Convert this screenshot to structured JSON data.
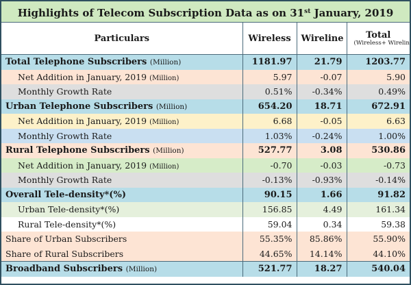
{
  "title": {
    "prefix": "Highlights of Telecom Subscription Data as on 31",
    "superscript": "st",
    "suffix": " January, 2019"
  },
  "header": {
    "particulars": "Particulars",
    "wireless": "Wireless",
    "wireline": "Wireline",
    "total": "Total",
    "total_sub": "(Wireless+ Wireline)"
  },
  "rows": [
    {
      "label": "Total Telephone Subscribers",
      "unit": "(Million)",
      "wireless": "1181.97",
      "wireline": "21.79",
      "total": "1203.77"
    },
    {
      "label": "Net Addition in January, 2019",
      "unit": "(Million)",
      "wireless": "5.97",
      "wireline": "-0.07",
      "total": "5.90"
    },
    {
      "label": "Monthly Growth Rate",
      "unit": "",
      "wireless": "0.51%",
      "wireline": "-0.34%",
      "total": "0.49%"
    },
    {
      "label": "Urban Telephone Subscribers",
      "unit": "(Million)",
      "wireless": "654.20",
      "wireline": "18.71",
      "total": "672.91"
    },
    {
      "label": "Net Addition in January, 2019",
      "unit": "(Million)",
      "wireless": "6.68",
      "wireline": "-0.05",
      "total": "6.63"
    },
    {
      "label": "Monthly Growth Rate",
      "unit": "",
      "wireless": "1.03%",
      "wireline": "-0.24%",
      "total": "1.00%"
    },
    {
      "label": "Rural Telephone Subscribers",
      "unit": "(Million)",
      "wireless": "527.77",
      "wireline": "3.08",
      "total": "530.86"
    },
    {
      "label": "Net Addition in January, 2019",
      "unit": "(Million)",
      "wireless": "-0.70",
      "wireline": "-0.03",
      "total": "-0.73"
    },
    {
      "label": "Monthly Growth Rate",
      "unit": "",
      "wireless": "-0.13%",
      "wireline": "-0.93%",
      "total": "-0.14%"
    },
    {
      "label": "Overall Tele-density*(%)",
      "unit": "",
      "wireless": "90.15",
      "wireline": "1.66",
      "total": "91.82"
    },
    {
      "label": "Urban Tele-density*(%)",
      "unit": "",
      "wireless": "156.85",
      "wireline": "4.49",
      "total": "161.34"
    },
    {
      "label": "Rural Tele-density*(%)",
      "unit": "",
      "wireless": "59.04",
      "wireline": "0.34",
      "total": "59.38"
    },
    {
      "label": "Share of Urban Subscribers",
      "unit": "",
      "wireless": "55.35%",
      "wireline": "85.86%",
      "total": "55.90%"
    },
    {
      "label": "Share of Rural Subscribers",
      "unit": "",
      "wireless": "44.65%",
      "wireline": "14.14%",
      "total": "44.10%"
    },
    {
      "label": "Broadband Subscribers",
      "unit": "(Million)",
      "wireless": "521.77",
      "wireline": "18.27",
      "total": "540.04"
    }
  ]
}
